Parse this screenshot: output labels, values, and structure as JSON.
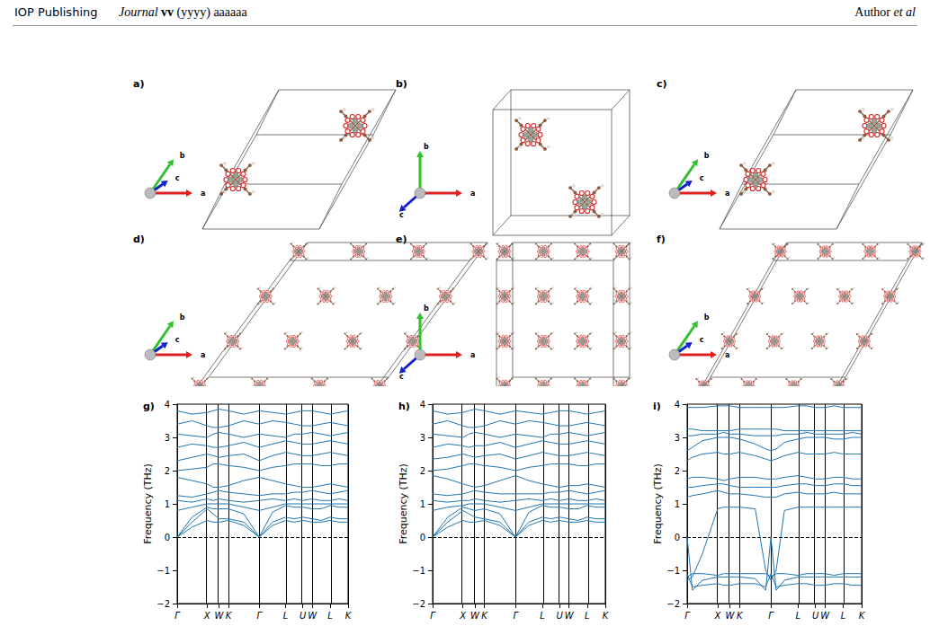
{
  "header": {
    "publisher": "IOP Publishing",
    "journal": "Journal",
    "volume": "vv",
    "year": "(yyyy)",
    "article": "aaaaaa",
    "author": "Author",
    "author_suffix": "et al"
  },
  "structures": [
    {
      "label": "a)",
      "axes": [
        "a",
        "b",
        "c"
      ]
    },
    {
      "label": "b)",
      "axes": [
        "a",
        "b",
        "c"
      ]
    },
    {
      "label": "c)",
      "axes": [
        "a",
        "b",
        "c"
      ]
    },
    {
      "label": "d)",
      "axes": [
        "a",
        "b",
        "c"
      ]
    },
    {
      "label": "e)",
      "axes": [
        "a",
        "b",
        "c"
      ]
    },
    {
      "label": "f)",
      "axes": [
        "a",
        "b",
        "c"
      ]
    }
  ],
  "chart_data": [
    {
      "type": "line",
      "label": "g)",
      "y_label": "Frequency (THz)",
      "color": "#1f77b4",
      "grid": "x",
      "hline": 0,
      "xlim": [
        0,
        1
      ],
      "ylim": [
        -2,
        4
      ],
      "xticks": [
        {
          "value": 0,
          "label": "Γ"
        },
        {
          "value": 0.175,
          "label": "X"
        },
        {
          "value": 0.245,
          "label": "W"
        },
        {
          "value": 0.3,
          "label": "K"
        },
        {
          "value": 0.48,
          "label": "Γ"
        },
        {
          "value": 0.635,
          "label": "L"
        },
        {
          "value": 0.735,
          "label": "U"
        },
        {
          "value": 0.79,
          "label": "W"
        },
        {
          "value": 0.895,
          "label": "L"
        },
        {
          "value": 1,
          "label": "K"
        }
      ],
      "yticks": [
        {
          "value": -2,
          "label": "−2"
        },
        {
          "value": -1,
          "label": "−1"
        },
        0,
        1,
        2,
        3,
        4
      ],
      "x": [
        0,
        0.0875,
        0.175,
        0.21,
        0.245,
        0.3,
        0.39,
        0.48,
        0.5575,
        0.635,
        0.685,
        0.735,
        0.79,
        0.8425,
        0.895,
        0.9475,
        1
      ],
      "series": [
        {
          "values": [
            0,
            0.3,
            0.5,
            0.45,
            0.45,
            0.5,
            0.35,
            0,
            0.35,
            0.5,
            0.45,
            0.5,
            0.45,
            0.45,
            0.5,
            0.45,
            0.45
          ]
        },
        {
          "values": [
            0,
            0.45,
            0.85,
            0.7,
            0.55,
            0.55,
            0.45,
            0,
            0.45,
            0.6,
            0.55,
            0.6,
            0.55,
            0.5,
            0.6,
            0.55,
            0.55
          ]
        },
        {
          "values": [
            0,
            0.6,
            0.9,
            0.85,
            0.85,
            0.85,
            0.7,
            0,
            0.75,
            0.95,
            0.9,
            0.9,
            0.85,
            0.85,
            0.95,
            0.9,
            0.9
          ]
        },
        {
          "values": [
            0.8,
            0.9,
            1.0,
            1.0,
            1.0,
            1.0,
            0.9,
            0.8,
            0.9,
            1.0,
            1.0,
            1.0,
            1.0,
            1.0,
            1.0,
            1.0,
            1.0
          ]
        },
        {
          "values": [
            1.1,
            1.05,
            1.15,
            1.1,
            1.15,
            1.1,
            1.05,
            1.1,
            1.15,
            1.1,
            1.15,
            1.1,
            1.15,
            1.1,
            1.1,
            1.15,
            1.1
          ]
        },
        {
          "values": [
            1.25,
            1.2,
            1.3,
            1.35,
            1.4,
            1.35,
            1.3,
            1.25,
            1.3,
            1.3,
            1.35,
            1.35,
            1.4,
            1.35,
            1.3,
            1.35,
            1.4
          ]
        },
        {
          "values": [
            1.8,
            1.7,
            1.6,
            1.5,
            1.5,
            1.55,
            1.7,
            1.8,
            1.7,
            1.6,
            1.55,
            1.5,
            1.5,
            1.55,
            1.6,
            1.55,
            1.5
          ]
        },
        {
          "values": [
            2.0,
            2.05,
            2.1,
            2.2,
            2.2,
            2.15,
            2.1,
            2.0,
            2.1,
            2.15,
            2.2,
            2.2,
            2.2,
            2.15,
            2.15,
            2.2,
            2.2
          ]
        },
        {
          "values": [
            2.3,
            2.4,
            2.5,
            2.45,
            2.4,
            2.45,
            2.5,
            2.3,
            2.45,
            2.55,
            2.5,
            2.45,
            2.45,
            2.5,
            2.55,
            2.5,
            2.45
          ]
        },
        {
          "values": [
            2.7,
            2.8,
            2.75,
            2.7,
            2.7,
            2.75,
            2.85,
            2.7,
            2.8,
            2.9,
            2.85,
            2.8,
            2.8,
            2.85,
            2.9,
            2.85,
            2.8
          ]
        },
        {
          "values": [
            3.1,
            3.05,
            3.0,
            3.1,
            3.15,
            3.1,
            3.0,
            3.1,
            3.05,
            3.0,
            3.1,
            3.1,
            3.15,
            3.1,
            3.05,
            3.1,
            3.15
          ]
        },
        {
          "values": [
            3.4,
            3.5,
            3.35,
            3.3,
            3.3,
            3.35,
            3.5,
            3.4,
            3.5,
            3.45,
            3.4,
            3.35,
            3.35,
            3.4,
            3.45,
            3.4,
            3.35
          ]
        },
        {
          "values": [
            3.8,
            3.7,
            3.75,
            3.8,
            3.85,
            3.8,
            3.7,
            3.8,
            3.75,
            3.7,
            3.75,
            3.8,
            3.8,
            3.75,
            3.7,
            3.75,
            3.8
          ]
        }
      ]
    },
    {
      "type": "line",
      "label": "h)",
      "y_label": "Frequency (THz)",
      "color": "#1f77b4",
      "grid": "x",
      "hline": 0,
      "xlim": [
        0,
        1
      ],
      "ylim": [
        -2,
        4
      ],
      "xticks": [
        {
          "value": 0,
          "label": "Γ"
        },
        {
          "value": 0.175,
          "label": "X"
        },
        {
          "value": 0.245,
          "label": "W"
        },
        {
          "value": 0.3,
          "label": "K"
        },
        {
          "value": 0.48,
          "label": "Γ"
        },
        {
          "value": 0.635,
          "label": "L"
        },
        {
          "value": 0.735,
          "label": "U"
        },
        {
          "value": 0.79,
          "label": "W"
        },
        {
          "value": 0.895,
          "label": "L"
        },
        {
          "value": 1,
          "label": "K"
        }
      ],
      "yticks": [
        {
          "value": -2,
          "label": "−2"
        },
        {
          "value": -1,
          "label": "−1"
        },
        0,
        1,
        2,
        3,
        4
      ],
      "x": [
        0,
        0.0875,
        0.175,
        0.21,
        0.245,
        0.3,
        0.39,
        0.48,
        0.5575,
        0.635,
        0.685,
        0.735,
        0.79,
        0.8425,
        0.895,
        0.9475,
        1
      ],
      "series": [
        {
          "values": [
            0,
            0.3,
            0.5,
            0.45,
            0.45,
            0.5,
            0.35,
            0,
            0.35,
            0.5,
            0.45,
            0.5,
            0.45,
            0.45,
            0.5,
            0.45,
            0.45
          ]
        },
        {
          "values": [
            0,
            0.45,
            0.8,
            0.7,
            0.6,
            0.55,
            0.45,
            0,
            0.45,
            0.6,
            0.55,
            0.6,
            0.55,
            0.5,
            0.6,
            0.55,
            0.55
          ]
        },
        {
          "values": [
            0,
            0.6,
            0.9,
            0.85,
            0.8,
            0.85,
            0.7,
            0,
            0.75,
            0.95,
            0.9,
            0.9,
            0.85,
            0.85,
            0.95,
            0.9,
            0.9
          ]
        },
        {
          "values": [
            0.8,
            0.9,
            0.95,
            1.0,
            1.0,
            1.0,
            0.9,
            0.8,
            0.9,
            1.0,
            1.0,
            1.0,
            1.0,
            1.0,
            1.0,
            1.0,
            1.0
          ]
        },
        {
          "values": [
            1.1,
            1.05,
            1.1,
            1.1,
            1.15,
            1.1,
            1.05,
            1.1,
            1.15,
            1.1,
            1.15,
            1.1,
            1.15,
            1.1,
            1.1,
            1.15,
            1.1
          ]
        },
        {
          "values": [
            1.3,
            1.25,
            1.3,
            1.35,
            1.4,
            1.35,
            1.3,
            1.3,
            1.3,
            1.3,
            1.35,
            1.35,
            1.4,
            1.35,
            1.3,
            1.35,
            1.4
          ]
        },
        {
          "values": [
            1.85,
            1.75,
            1.6,
            1.55,
            1.5,
            1.55,
            1.7,
            1.85,
            1.7,
            1.6,
            1.55,
            1.5,
            1.55,
            1.55,
            1.6,
            1.55,
            1.5
          ]
        },
        {
          "values": [
            2.0,
            2.05,
            2.15,
            2.2,
            2.2,
            2.15,
            2.1,
            2.0,
            2.1,
            2.15,
            2.2,
            2.2,
            2.2,
            2.15,
            2.15,
            2.2,
            2.2
          ]
        },
        {
          "values": [
            2.35,
            2.4,
            2.5,
            2.45,
            2.4,
            2.45,
            2.5,
            2.35,
            2.45,
            2.55,
            2.5,
            2.45,
            2.45,
            2.5,
            2.55,
            2.5,
            2.45
          ]
        },
        {
          "values": [
            2.7,
            2.8,
            2.75,
            2.7,
            2.75,
            2.75,
            2.85,
            2.7,
            2.8,
            2.9,
            2.85,
            2.8,
            2.8,
            2.85,
            2.9,
            2.85,
            2.8
          ]
        },
        {
          "values": [
            3.1,
            3.05,
            3.0,
            3.1,
            3.15,
            3.1,
            3.0,
            3.1,
            3.05,
            3.0,
            3.1,
            3.1,
            3.15,
            3.1,
            3.05,
            3.1,
            3.15
          ]
        },
        {
          "values": [
            3.4,
            3.5,
            3.35,
            3.3,
            3.3,
            3.35,
            3.5,
            3.4,
            3.5,
            3.45,
            3.4,
            3.35,
            3.35,
            3.4,
            3.45,
            3.4,
            3.35
          ]
        },
        {
          "values": [
            3.8,
            3.7,
            3.75,
            3.8,
            3.85,
            3.8,
            3.7,
            3.8,
            3.75,
            3.7,
            3.75,
            3.8,
            3.8,
            3.75,
            3.7,
            3.75,
            3.8
          ]
        }
      ]
    },
    {
      "type": "line",
      "label": "i)",
      "y_label": "Frequency (THz)",
      "color": "#1f77b4",
      "grid": "x",
      "hline": 0,
      "xlim": [
        0,
        1
      ],
      "ylim": [
        -2,
        4
      ],
      "xticks": [
        {
          "value": 0,
          "label": "Γ"
        },
        {
          "value": 0.175,
          "label": "X"
        },
        {
          "value": 0.245,
          "label": "W"
        },
        {
          "value": 0.3,
          "label": "K"
        },
        {
          "value": 0.48,
          "label": "Γ"
        },
        {
          "value": 0.635,
          "label": "L"
        },
        {
          "value": 0.735,
          "label": "U"
        },
        {
          "value": 0.79,
          "label": "W"
        },
        {
          "value": 0.895,
          "label": "L"
        },
        {
          "value": 1,
          "label": "K"
        }
      ],
      "yticks": [
        {
          "value": -2,
          "label": "−2"
        },
        {
          "value": -1,
          "label": "−1"
        },
        0,
        1,
        2,
        3,
        4
      ],
      "x": [
        0,
        0.03,
        0.0875,
        0.175,
        0.21,
        0.245,
        0.3,
        0.39,
        0.45,
        0.48,
        0.51,
        0.5575,
        0.635,
        0.685,
        0.735,
        0.79,
        0.8425,
        0.895,
        0.9475,
        1
      ],
      "series": [
        {
          "values": [
            0,
            -1.6,
            -1.3,
            -1.2,
            -1.2,
            -1.2,
            -1.2,
            -1.25,
            -1.6,
            0,
            -1.6,
            -1.3,
            -1.2,
            -1.2,
            -1.2,
            -1.2,
            -1.2,
            -1.2,
            -1.2,
            -1.2
          ]
        },
        {
          "values": [
            -1.1,
            -1.5,
            -1.45,
            -1.4,
            -1.45,
            -1.45,
            -1.4,
            -1.4,
            -1.5,
            -1.1,
            -1.5,
            -1.45,
            -1.4,
            -1.4,
            -1.45,
            -1.45,
            -1.4,
            -1.4,
            -1.45,
            -1.45
          ]
        },
        {
          "values": [
            -1.2,
            -1.1,
            -1.1,
            -1.15,
            -1.1,
            -1.1,
            -1.1,
            -1.1,
            -1.1,
            -1.2,
            -1.1,
            -1.1,
            -1.15,
            -1.1,
            -1.1,
            -1.1,
            -1.15,
            -1.1,
            -1.1,
            -1.1
          ]
        },
        {
          "values": [
            -1.3,
            -1.2,
            -0.5,
            0.85,
            0.9,
            0.9,
            0.9,
            0.85,
            -1.0,
            -1.3,
            -1.0,
            0.8,
            0.9,
            0.9,
            0.9,
            0.9,
            0.9,
            0.9,
            0.9,
            0.9
          ]
        },
        {
          "values": [
            1.2,
            1.25,
            1.3,
            1.4,
            1.35,
            1.3,
            1.3,
            1.25,
            1.2,
            1.2,
            1.2,
            1.3,
            1.35,
            1.3,
            1.3,
            1.3,
            1.35,
            1.3,
            1.3,
            1.3
          ]
        },
        {
          "values": [
            1.5,
            1.5,
            1.55,
            1.6,
            1.6,
            1.55,
            1.5,
            1.5,
            1.5,
            1.5,
            1.5,
            1.55,
            1.6,
            1.6,
            1.55,
            1.55,
            1.6,
            1.6,
            1.55,
            1.55
          ]
        },
        {
          "values": [
            1.75,
            1.8,
            1.8,
            1.75,
            1.7,
            1.75,
            1.8,
            1.8,
            1.75,
            1.75,
            1.75,
            1.8,
            1.85,
            1.8,
            1.75,
            1.75,
            1.8,
            1.8,
            1.75,
            1.75
          ]
        },
        {
          "values": [
            2.3,
            2.4,
            2.5,
            2.55,
            2.5,
            2.5,
            2.55,
            2.45,
            2.35,
            2.3,
            2.35,
            2.45,
            2.55,
            2.5,
            2.5,
            2.5,
            2.55,
            2.5,
            2.5,
            2.5
          ]
        },
        {
          "values": [
            2.6,
            2.7,
            2.9,
            3.0,
            3.0,
            3.0,
            2.95,
            2.8,
            2.65,
            2.6,
            2.65,
            2.85,
            2.95,
            3.0,
            3.0,
            3.0,
            2.95,
            2.95,
            3.0,
            3.0
          ]
        },
        {
          "values": [
            3.05,
            3.05,
            3.1,
            3.1,
            3.15,
            3.1,
            3.1,
            3.05,
            3.05,
            3.05,
            3.05,
            3.1,
            3.1,
            3.15,
            3.1,
            3.1,
            3.1,
            3.1,
            3.15,
            3.1
          ]
        },
        {
          "values": [
            3.25,
            3.25,
            3.2,
            3.2,
            3.2,
            3.2,
            3.25,
            3.25,
            3.25,
            3.25,
            3.25,
            3.2,
            3.2,
            3.2,
            3.2,
            3.2,
            3.2,
            3.2,
            3.2,
            3.2
          ]
        },
        {
          "values": [
            3.9,
            3.9,
            3.9,
            3.95,
            3.95,
            3.95,
            3.9,
            3.9,
            3.9,
            3.9,
            3.9,
            3.9,
            3.95,
            3.95,
            3.9,
            3.9,
            3.95,
            3.9,
            3.9,
            3.9
          ]
        }
      ]
    }
  ]
}
